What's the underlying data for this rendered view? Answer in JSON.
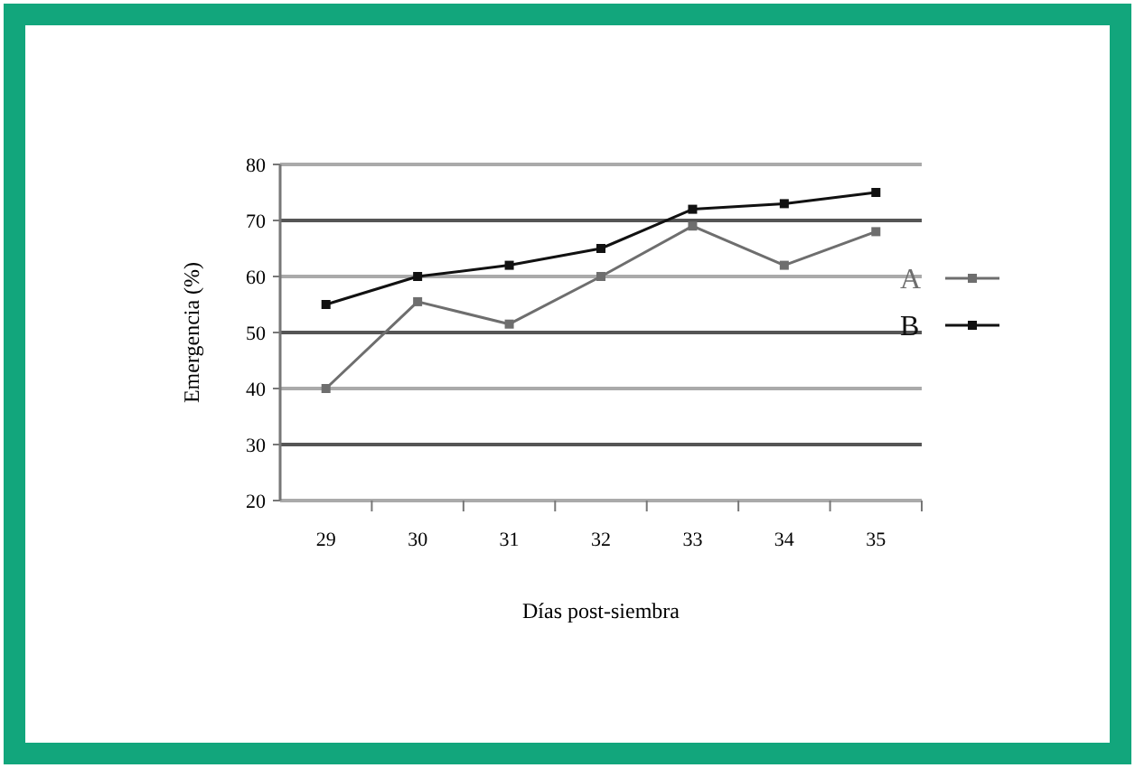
{
  "chart_data": {
    "type": "line",
    "xlabel": "Días post-siembra",
    "ylabel": "Emergencia (%)",
    "categories": [
      "29",
      "30",
      "31",
      "32",
      "33",
      "34",
      "35"
    ],
    "series": [
      {
        "name": "A",
        "color": "#6e6e6e",
        "values": [
          40,
          55.5,
          51.5,
          60,
          69,
          62,
          68
        ]
      },
      {
        "name": "B",
        "color": "#111111",
        "values": [
          55,
          60,
          62,
          65,
          72,
          73,
          75
        ]
      }
    ],
    "ylim": [
      20,
      80
    ],
    "yticks": [
      20,
      30,
      40,
      50,
      60,
      70,
      80
    ],
    "grid": "y",
    "legend": "right",
    "marker": "square"
  }
}
